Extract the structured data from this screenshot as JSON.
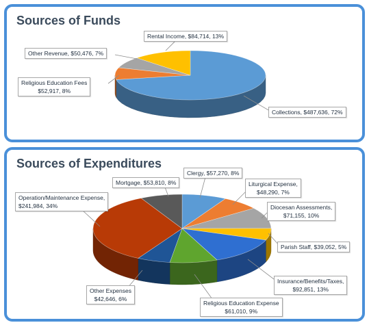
{
  "chart_data": [
    {
      "type": "pie",
      "title": "Sources of Funds",
      "slices": [
        {
          "label": "Collections",
          "value_text": "$487,636",
          "pct_text": "72%",
          "value": 487636,
          "color": "#5b9bd5"
        },
        {
          "label": "Religious Education Fees",
          "value_text": "$52,917",
          "pct_text": "8%",
          "value": 52917,
          "color": "#ed7d31"
        },
        {
          "label": "Other Revenue",
          "value_text": "$50,476",
          "pct_text": "7%",
          "value": 50476,
          "color": "#a5a5a5"
        },
        {
          "label": "Rental Income",
          "value_text": "$84,714",
          "pct_text": "13%",
          "value": 84714,
          "color": "#ffc000"
        }
      ]
    },
    {
      "type": "pie",
      "title": "Sources of Expenditures",
      "slices": [
        {
          "label": "Clergy",
          "value_text": "$57,270",
          "pct_text": "8%",
          "value": 57270,
          "color": "#5b9bd5"
        },
        {
          "label": "Liturgical Expense",
          "value_text": "$48,290",
          "pct_text": "7%",
          "value": 48290,
          "color": "#ed7d31"
        },
        {
          "label": "Diocesan Assessments",
          "value_text": "$71,155",
          "pct_text": "10%",
          "value": 71155,
          "color": "#a5a5a5"
        },
        {
          "label": "Parish Staff",
          "value_text": "$39,052",
          "pct_text": "5%",
          "value": 39052,
          "color": "#ffc000"
        },
        {
          "label": "Insurance/Benefits/Taxes",
          "value_text": "$92,851",
          "pct_text": "13%",
          "value": 92851,
          "color": "#2f6fd1"
        },
        {
          "label": "Religious Education Expense",
          "value_text": "$61,010",
          "pct_text": "9%",
          "value": 61010,
          "color": "#5fa52e"
        },
        {
          "label": "Other Expenses",
          "value_text": "$42,646",
          "pct_text": "6%",
          "value": 42646,
          "color": "#1f5596"
        },
        {
          "label": "Operation/Maintenance Expense",
          "value_text": "$241,984",
          "pct_text": "34%",
          "value": 241984,
          "color": "#b83a06"
        },
        {
          "label": "Mortgage",
          "value_text": "$53,810",
          "pct_text": "8%",
          "value": 53810,
          "color": "#595959"
        }
      ]
    }
  ]
}
